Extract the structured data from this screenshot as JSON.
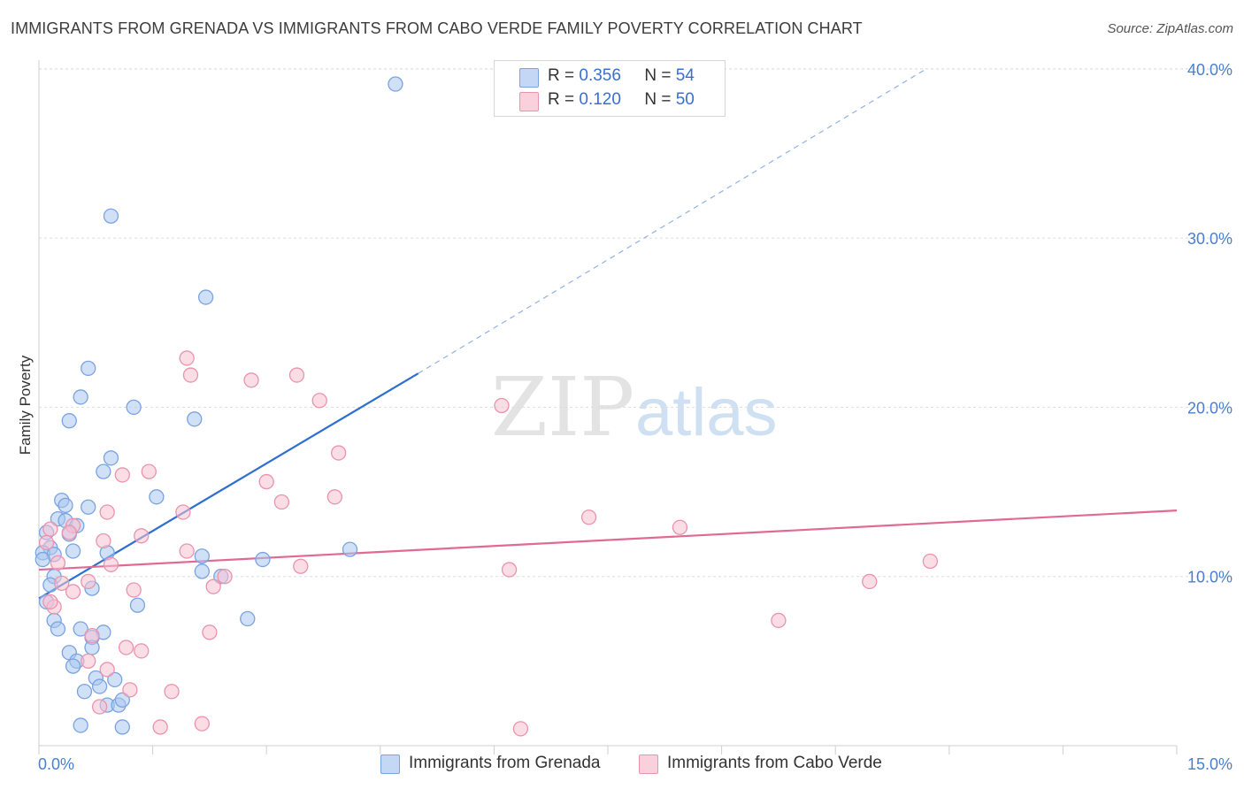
{
  "title": "IMMIGRANTS FROM GRENADA VS IMMIGRANTS FROM CABO VERDE FAMILY POVERTY CORRELATION CHART",
  "source": "Source: ZipAtlas.com",
  "watermark": {
    "zip": "ZIP",
    "atlas": "atlas"
  },
  "legend": {
    "r_label": "R =",
    "n_label": "N =",
    "rows": [
      {
        "name": "Immigrants from Grenada",
        "r": "0.356",
        "n": "54",
        "color": "#a9c6f0",
        "stroke": "#6c9ae0"
      },
      {
        "name": "Immigrants from Cabo Verde",
        "r": "0.120",
        "n": "50",
        "color": "#f7c1d1",
        "stroke": "#e98aa8"
      }
    ]
  },
  "colors": {
    "blue_fill": "#a9c6f0",
    "blue_stroke": "#7aa3e0",
    "blue_line": "#2f6fd0",
    "pink_fill": "#f7c1d1",
    "pink_stroke": "#ea93ae",
    "pink_line": "#e06a94",
    "grid": "#dddddd",
    "tick_text": "#4a7fcf"
  },
  "chart_data": {
    "type": "scatter",
    "title": "IMMIGRANTS FROM GRENADA VS IMMIGRANTS FROM CABO VERDE FAMILY POVERTY CORRELATION CHART",
    "xlabel": "",
    "ylabel": "Family Poverty",
    "xlim": [
      0,
      15
    ],
    "ylim": [
      0,
      41
    ],
    "x_tick_labels": [
      "0.0%",
      "15.0%"
    ],
    "y_ticks": [
      10,
      20,
      30,
      40
    ],
    "y_tick_labels": [
      "10.0%",
      "20.0%",
      "30.0%",
      "40.0%"
    ],
    "series": [
      {
        "name": "Immigrants from Grenada",
        "r": 0.356,
        "n": 54,
        "trend": {
          "x0": 0.0,
          "y0": 8.7,
          "x1": 5.0,
          "y1": 22.0,
          "dash_x1": 11.7,
          "dash_y1": 40.0
        },
        "points": [
          [
            4.7,
            39.1
          ],
          [
            0.95,
            31.3
          ],
          [
            2.2,
            26.5
          ],
          [
            0.65,
            22.3
          ],
          [
            0.55,
            20.6
          ],
          [
            1.25,
            20.0
          ],
          [
            0.4,
            19.2
          ],
          [
            2.05,
            19.3
          ],
          [
            0.95,
            17.0
          ],
          [
            0.85,
            16.2
          ],
          [
            1.55,
            14.7
          ],
          [
            0.3,
            14.5
          ],
          [
            0.65,
            14.1
          ],
          [
            0.35,
            14.2
          ],
          [
            0.25,
            13.4
          ],
          [
            0.35,
            13.3
          ],
          [
            0.5,
            13.0
          ],
          [
            0.1,
            12.6
          ],
          [
            0.4,
            12.5
          ],
          [
            0.15,
            11.7
          ],
          [
            0.05,
            11.4
          ],
          [
            0.2,
            11.3
          ],
          [
            0.45,
            11.5
          ],
          [
            0.9,
            11.4
          ],
          [
            2.15,
            11.2
          ],
          [
            2.95,
            11.0
          ],
          [
            4.1,
            11.6
          ],
          [
            0.05,
            11.0
          ],
          [
            2.15,
            10.3
          ],
          [
            2.4,
            10.0
          ],
          [
            0.2,
            10.0
          ],
          [
            0.15,
            9.5
          ],
          [
            0.7,
            9.3
          ],
          [
            0.1,
            8.5
          ],
          [
            1.3,
            8.3
          ],
          [
            0.2,
            7.4
          ],
          [
            2.75,
            7.5
          ],
          [
            0.25,
            6.9
          ],
          [
            0.55,
            6.9
          ],
          [
            0.85,
            6.7
          ],
          [
            0.7,
            6.4
          ],
          [
            0.7,
            5.8
          ],
          [
            0.4,
            5.5
          ],
          [
            0.5,
            5.0
          ],
          [
            0.45,
            4.7
          ],
          [
            0.75,
            4.0
          ],
          [
            1.0,
            3.9
          ],
          [
            0.8,
            3.5
          ],
          [
            0.6,
            3.2
          ],
          [
            0.9,
            2.4
          ],
          [
            1.05,
            2.4
          ],
          [
            1.1,
            2.7
          ],
          [
            0.55,
            1.2
          ],
          [
            1.1,
            1.1
          ]
        ]
      },
      {
        "name": "Immigrants from Cabo Verde",
        "r": 0.12,
        "n": 50,
        "trend": {
          "x0": 0.0,
          "y0": 10.4,
          "x1": 15.0,
          "y1": 13.9
        },
        "points": [
          [
            1.95,
            22.9
          ],
          [
            2.0,
            21.9
          ],
          [
            3.4,
            21.9
          ],
          [
            2.8,
            21.6
          ],
          [
            3.7,
            20.4
          ],
          [
            6.1,
            20.1
          ],
          [
            3.95,
            17.3
          ],
          [
            1.45,
            16.2
          ],
          [
            1.1,
            16.0
          ],
          [
            3.0,
            15.6
          ],
          [
            3.2,
            14.4
          ],
          [
            3.9,
            14.7
          ],
          [
            0.9,
            13.8
          ],
          [
            1.9,
            13.8
          ],
          [
            7.25,
            13.5
          ],
          [
            8.45,
            12.9
          ],
          [
            0.45,
            13.0
          ],
          [
            0.15,
            12.8
          ],
          [
            1.35,
            12.4
          ],
          [
            0.4,
            12.6
          ],
          [
            0.85,
            12.1
          ],
          [
            1.95,
            11.5
          ],
          [
            11.75,
            10.9
          ],
          [
            0.25,
            10.8
          ],
          [
            0.95,
            10.7
          ],
          [
            3.45,
            10.6
          ],
          [
            6.2,
            10.4
          ],
          [
            2.45,
            10.0
          ],
          [
            10.95,
            9.7
          ],
          [
            0.3,
            9.6
          ],
          [
            0.65,
            9.7
          ],
          [
            2.3,
            9.4
          ],
          [
            1.25,
            9.2
          ],
          [
            0.45,
            9.1
          ],
          [
            0.2,
            8.2
          ],
          [
            9.75,
            7.4
          ],
          [
            2.25,
            6.7
          ],
          [
            0.7,
            6.5
          ],
          [
            1.15,
            5.8
          ],
          [
            1.35,
            5.6
          ],
          [
            0.65,
            5.0
          ],
          [
            0.9,
            4.5
          ],
          [
            1.2,
            3.3
          ],
          [
            1.75,
            3.2
          ],
          [
            0.8,
            2.3
          ],
          [
            2.15,
            1.3
          ],
          [
            1.6,
            1.1
          ],
          [
            6.35,
            1.0
          ],
          [
            0.1,
            12.0
          ],
          [
            0.15,
            8.5
          ]
        ]
      }
    ]
  }
}
